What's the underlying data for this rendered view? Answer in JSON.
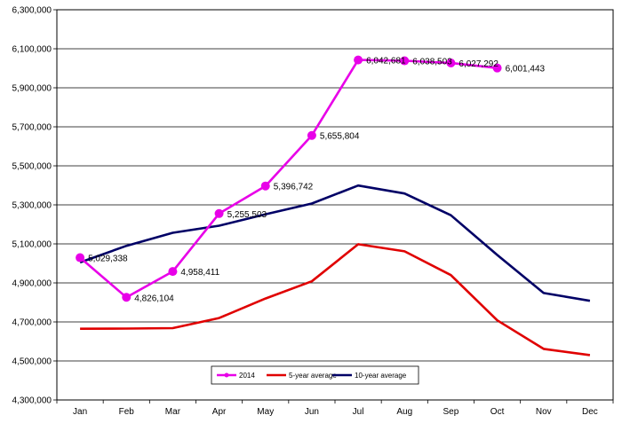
{
  "chart_data": {
    "type": "line",
    "categories": [
      "Jan",
      "Feb",
      "Mar",
      "Apr",
      "May",
      "Jun",
      "Jul",
      "Aug",
      "Sep",
      "Oct",
      "Nov",
      "Dec"
    ],
    "ylim": [
      4300000,
      6300000
    ],
    "ytick_step": 200000,
    "y_ticks": [
      "4,300,000",
      "4,500,000",
      "4,700,000",
      "4,900,000",
      "5,100,000",
      "5,300,000",
      "5,500,000",
      "5,700,000",
      "5,900,000",
      "6,100,000",
      "6,300,000"
    ],
    "grid": "horizontal",
    "legend_position": "bottom",
    "series": [
      {
        "name": "2014",
        "color": "#E800E8",
        "markers": true,
        "values": [
          5029338,
          4826104,
          4958411,
          5255503,
          5396742,
          5655804,
          6042681,
          6038503,
          6027292,
          6001443,
          null,
          null
        ],
        "labels": [
          "5,029,338",
          "4,826,104",
          "4,958,411",
          "5,255,503",
          "5,396,742",
          "5,655,804",
          "6,042,681",
          "6,038,503",
          "6,027,292",
          "6,001,443",
          "",
          ""
        ]
      },
      {
        "name": "5-year average",
        "color": "#E00000",
        "markers": false,
        "values": [
          4665000,
          4666000,
          4668000,
          4720000,
          4820000,
          4908000,
          5098000,
          5062000,
          4940000,
          4708000,
          4562000,
          4530000
        ]
      },
      {
        "name": "10-year average",
        "color": "#000066",
        "markers": false,
        "values": [
          5005000,
          5090000,
          5157000,
          5193000,
          5252000,
          5307000,
          5399000,
          5358000,
          5247000,
          5043000,
          4848000,
          4808000
        ]
      }
    ]
  }
}
